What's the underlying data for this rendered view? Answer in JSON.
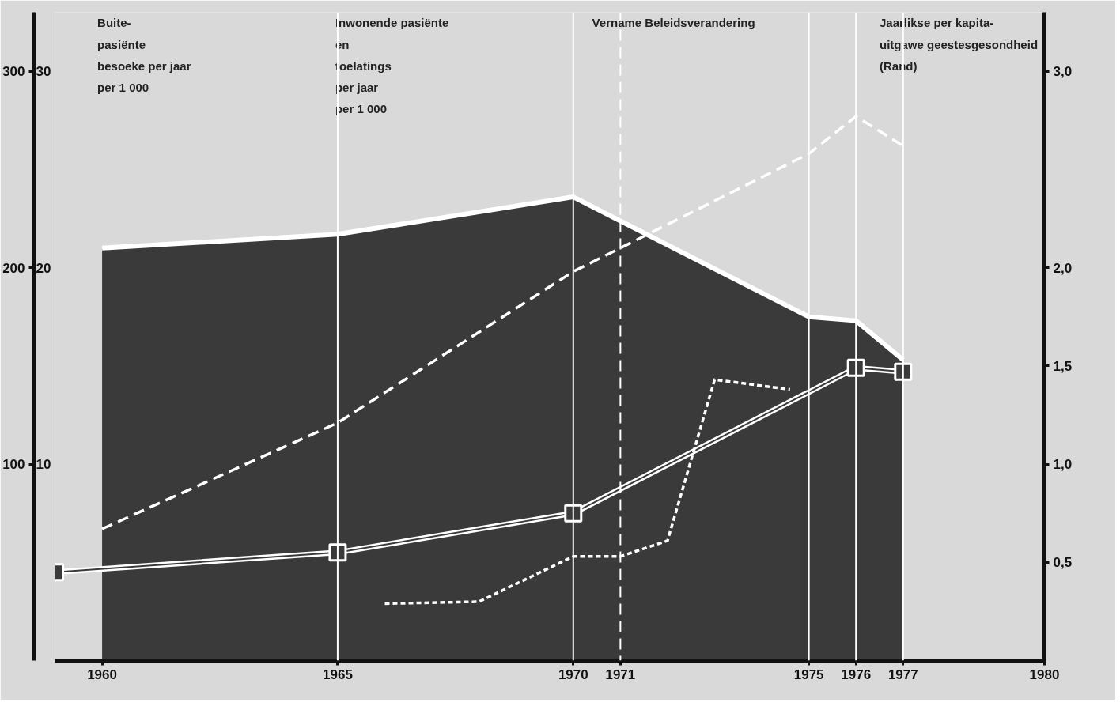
{
  "chart_data": {
    "type": "line",
    "annotations": [
      "Buite-\npasiënte\nbesoeke per jaar\nper 1 000",
      "Inwonende  pasiënte\nen\ntoelatings\nper jaar\nper 1 000"
    ],
    "y3label": "Jaarlikse per kapita-\nuitgawe geestesgesondheid\n(Rand)",
    "x": [
      1960,
      1965,
      1970,
      1975,
      1976,
      1977
    ],
    "xlim": [
      1959,
      1980
    ],
    "xticks": [
      1960,
      1965,
      1970,
      1971,
      1975,
      1976,
      1977,
      1980
    ],
    "ylim": [
      0,
      330
    ],
    "yticks": [
      100,
      200,
      300
    ],
    "y2lim": [
      0,
      33
    ],
    "y2ticks": [
      10,
      20,
      30
    ],
    "y3lim": [
      0,
      3.3
    ],
    "y3ticks": [
      {
        "value": 0.5,
        "label": "0,5"
      },
      {
        "value": 1.0,
        "label": "1,0"
      },
      {
        "value": 1.5,
        "label": "1,5"
      },
      {
        "value": 2.0,
        "label": "2,0"
      },
      {
        "value": 3.0,
        "label": "3,0"
      }
    ],
    "series": [
      {
        "type": "area",
        "axis": "y2",
        "color": "#3a3a3a",
        "values": [
          21.0,
          21.7,
          23.6,
          17.5,
          17.3,
          15.3
        ]
      },
      {
        "axis": "y2",
        "color": "#ffffff",
        "marker": "square",
        "line_style": "solid",
        "x": [
          1959,
          1965,
          1970,
          1976,
          1977
        ],
        "values": [
          4.5,
          5.5,
          7.5,
          14.9,
          14.7
        ]
      },
      {
        "axis": "y",
        "color": "#ffffff",
        "line_style": "dashed",
        "values": [
          67,
          121,
          198,
          258,
          277,
          262
        ]
      },
      {
        "axis": "y3",
        "color": "#ffffff",
        "line_style": "dotted",
        "x": [
          1966,
          1968,
          1970,
          1971,
          1972,
          1973,
          1974.6
        ],
        "values": [
          0.29,
          0.3,
          0.53,
          0.53,
          0.61,
          1.43,
          1.38
        ]
      }
    ],
    "ref_lines": [
      {
        "axis": "x",
        "value": 1971,
        "label": "Vername Beleidsverandering",
        "color": "#ffffff",
        "line_style": "dashed"
      },
      {
        "axis": "x",
        "value": 1965,
        "label": null,
        "color": "#ffffff",
        "line_style": "solid"
      },
      {
        "axis": "x",
        "value": 1970,
        "label": null,
        "color": "#ffffff",
        "line_style": "solid"
      },
      {
        "axis": "x",
        "value": 1975,
        "label": null,
        "color": "#ffffff",
        "line_style": "solid"
      },
      {
        "axis": "x",
        "value": 1976,
        "label": null,
        "color": "#ffffff",
        "line_style": "solid"
      },
      {
        "axis": "x",
        "value": 1977,
        "label": null,
        "color": "#ffffff",
        "line_style": "solid"
      }
    ],
    "grid": false
  }
}
